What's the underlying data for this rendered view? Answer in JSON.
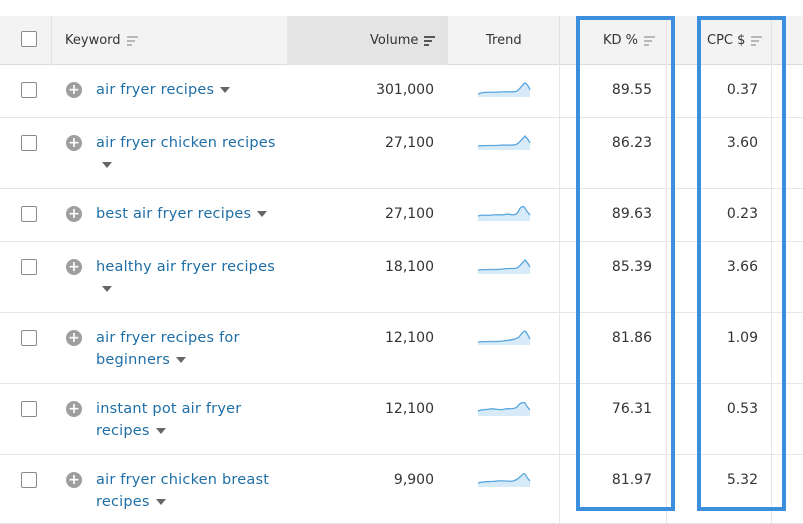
{
  "header": {
    "keyword": "Keyword",
    "volume": "Volume",
    "trend": "Trend",
    "kd": "KD %",
    "cpc": "CPC $"
  },
  "rows": [
    {
      "keyword": "air fryer recipes",
      "volume": "301,000",
      "kd": "89.55",
      "cpc": "0.37"
    },
    {
      "keyword": "air fryer chicken recipes",
      "volume": "27,100",
      "kd": "86.23",
      "cpc": "3.60"
    },
    {
      "keyword": "best air fryer recipes",
      "volume": "27,100",
      "kd": "89.63",
      "cpc": "0.23"
    },
    {
      "keyword": "healthy air fryer recipes",
      "volume": "18,100",
      "kd": "85.39",
      "cpc": "3.66"
    },
    {
      "keyword": "air fryer recipes for beginners",
      "volume": "12,100",
      "kd": "81.86",
      "cpc": "1.09"
    },
    {
      "keyword": "instant pot air fryer recipes",
      "volume": "12,100",
      "kd": "76.31",
      "cpc": "0.53"
    },
    {
      "keyword": "air fryer chicken breast recipes",
      "volume": "9,900",
      "kd": "81.97",
      "cpc": "5.32"
    }
  ],
  "colors": {
    "link": "#1f6ea6",
    "highlight": "#3b8fdc",
    "trend_line": "#5aa7df",
    "trend_fill": "#d6eaf8"
  },
  "icons": {
    "add": "plus-circle-icon",
    "expand": "caret-down-icon",
    "sort": "sort-lines-icon"
  }
}
